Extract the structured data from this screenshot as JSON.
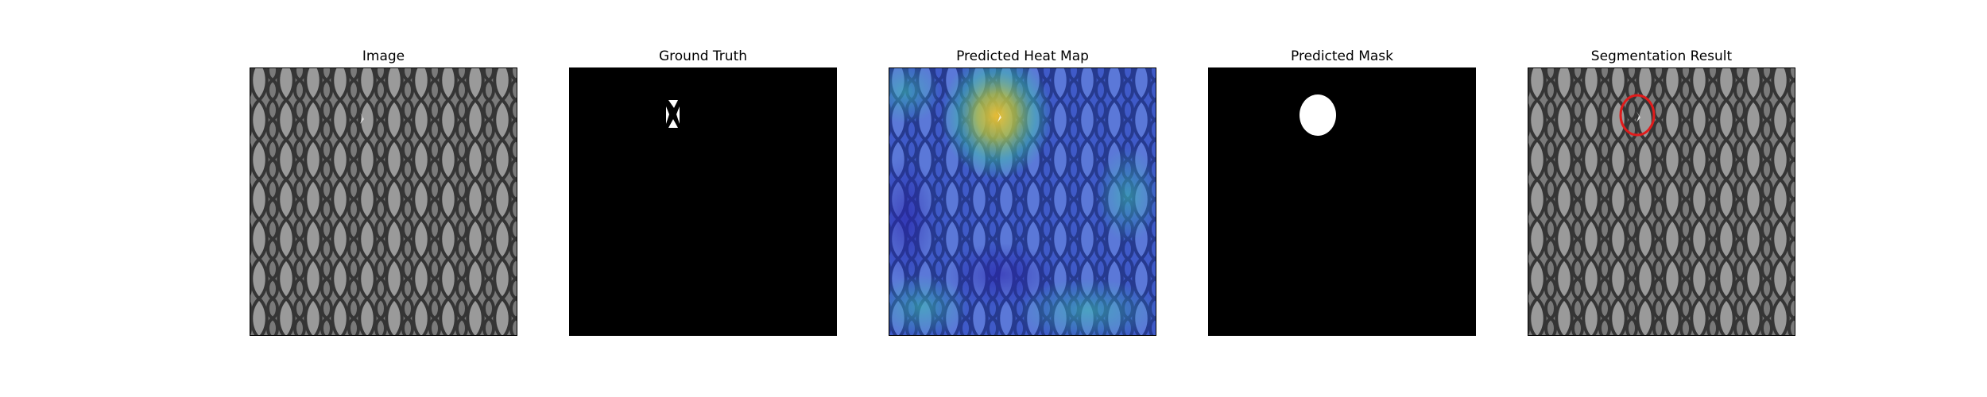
{
  "figure": {
    "panels": [
      {
        "title": "Image"
      },
      {
        "title": "Ground Truth"
      },
      {
        "title": "Predicted Heat Map"
      },
      {
        "title": "Predicted Mask"
      },
      {
        "title": "Segmentation Result"
      }
    ]
  },
  "colors": {
    "mesh_light": "#8c8c8c",
    "mesh_dark": "#3c3c3c",
    "mask_bg": "#000000",
    "mask_fg": "#ffffff",
    "heat_low": "#3a4fc4",
    "heat_high": "#e8c23a",
    "contour": "#e01b1b"
  }
}
